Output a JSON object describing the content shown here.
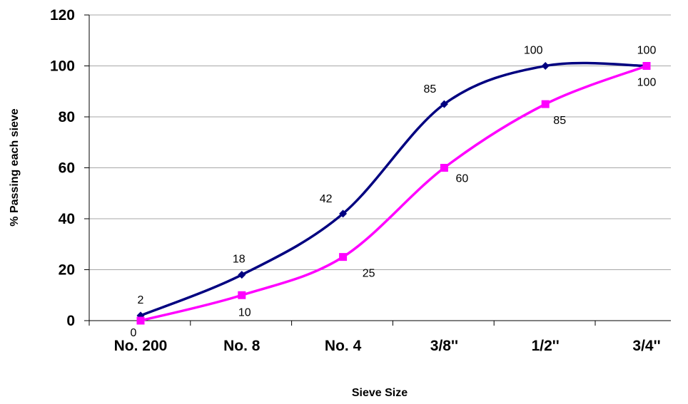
{
  "chart_data": {
    "type": "line",
    "categories": [
      "No. 200",
      "No. 8",
      "No. 4",
      "3/8''",
      "1/2''",
      "3/4''"
    ],
    "series": [
      {
        "values": [
          2,
          18,
          42,
          85,
          100,
          100
        ],
        "color": "#000080",
        "marker": "diamond"
      },
      {
        "values": [
          0,
          10,
          25,
          60,
          85,
          100
        ],
        "color": "#ff00ff",
        "marker": "square"
      }
    ],
    "data_labels": {
      "series_0": [
        "2",
        "18",
        "42",
        "85",
        "100",
        "100"
      ],
      "series_1": [
        "0",
        "10",
        "25",
        "60",
        "85",
        "100"
      ]
    },
    "xlabel": "Sieve Size",
    "ylabel": "% Passing each sieve",
    "ylim": [
      0,
      120
    ],
    "yticks": [
      0,
      20,
      40,
      60,
      80,
      100,
      120
    ],
    "ytick_labels": [
      "0",
      "20",
      "40",
      "60",
      "80",
      "100",
      "120"
    ],
    "grid": "horizontal",
    "legend": "none"
  }
}
